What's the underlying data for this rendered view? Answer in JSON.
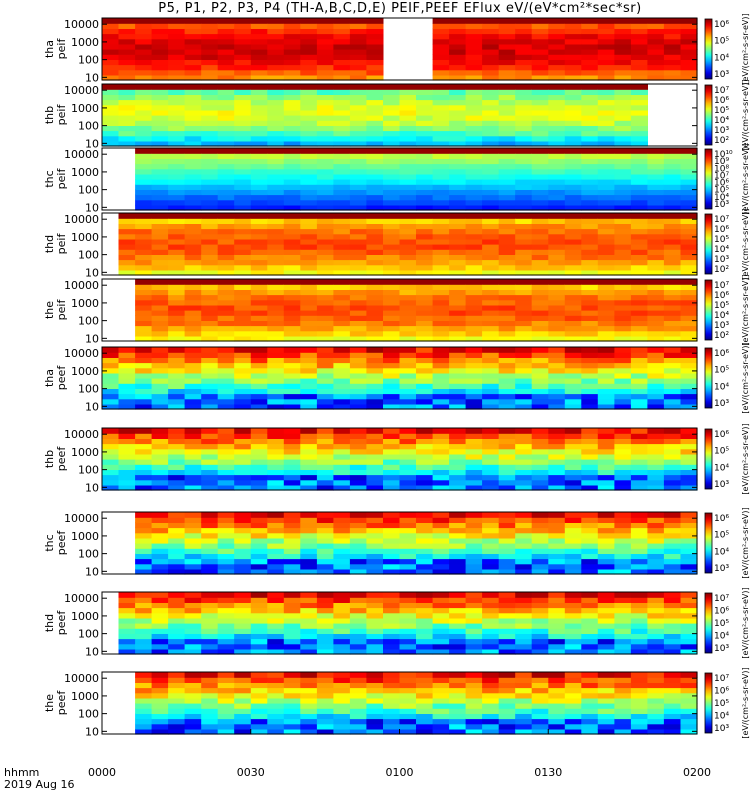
{
  "title": "P5, P1, P2, P3, P4 (TH-A,B,C,D,E) PEIF,PEEF EFlux eV/(eV*cm²*sec*sr)",
  "footer": {
    "label_format": "hhmm",
    "date": "2019 Aug 16"
  },
  "colorbar_label": "[eV/(cm²-s-sr-eV)]",
  "chart_data": {
    "type": "heatmap",
    "x": {
      "ticks": [
        "0000",
        "0030",
        "0100",
        "0130",
        "0200"
      ]
    },
    "y": {
      "scale": "log",
      "ticks": [
        "10",
        "100",
        "1000",
        "10000"
      ]
    },
    "panels": [
      {
        "probe": "tha",
        "label": "tha\npeif",
        "species": "ion",
        "gaps": [
          [
            0.485,
            0.56
          ]
        ],
        "start": 0.0,
        "end": 1.0,
        "colorbar_ticks": [
          "10³",
          "10⁴",
          "10⁵",
          "10⁶"
        ]
      },
      {
        "probe": "thb",
        "label": "thb\npeif",
        "species": "ion",
        "gaps": [
          [
            0.922,
            1.0
          ]
        ],
        "start": 0.0,
        "end": 0.922,
        "colorbar_ticks": [
          "10²",
          "10³",
          "10⁴",
          "10⁵",
          "10⁶",
          "10⁷"
        ]
      },
      {
        "probe": "thc",
        "label": "thc\npeif",
        "species": "ion",
        "gaps": [],
        "start": 0.045,
        "end": 1.0,
        "colorbar_ticks": [
          "10³",
          "10⁴",
          "10⁵",
          "10⁶",
          "10⁷",
          "10⁸",
          "10⁹",
          "10¹⁰"
        ]
      },
      {
        "probe": "thd",
        "label": "thd\npeif",
        "species": "ion",
        "gaps": [],
        "start": 0.03,
        "end": 1.0,
        "colorbar_ticks": [
          "10²",
          "10³",
          "10⁴",
          "10⁵",
          "10⁶",
          "10⁷"
        ]
      },
      {
        "probe": "the",
        "label": "the\npeif",
        "species": "ion",
        "gaps": [],
        "start": 0.045,
        "end": 1.0,
        "colorbar_ticks": [
          "10²",
          "10³",
          "10⁴",
          "10⁵",
          "10⁶",
          "10⁷"
        ]
      },
      {
        "probe": "tha",
        "label": "tha\npeef",
        "species": "electron",
        "gaps": [],
        "start": 0.0,
        "end": 1.0,
        "colorbar_ticks": [
          "10³",
          "10⁴",
          "10⁵",
          "10⁶"
        ]
      },
      {
        "probe": "thb",
        "label": "thb\npeef",
        "species": "electron",
        "gaps": [],
        "start": 0.0,
        "end": 1.0,
        "colorbar_ticks": [
          "10³",
          "10⁴",
          "10⁵",
          "10⁶"
        ]
      },
      {
        "probe": "thc",
        "label": "thc\npeef",
        "species": "electron",
        "gaps": [],
        "start": 0.045,
        "end": 1.0,
        "colorbar_ticks": [
          "10³",
          "10⁴",
          "10⁵",
          "10⁶"
        ]
      },
      {
        "probe": "thd",
        "label": "thd\npeef",
        "species": "electron",
        "gaps": [],
        "start": 0.03,
        "end": 1.0,
        "colorbar_ticks": [
          "10³",
          "10⁴",
          "10⁵",
          "10⁶",
          "10⁷"
        ]
      },
      {
        "probe": "the",
        "label": "the\npeef",
        "species": "electron",
        "gaps": [],
        "start": 0.045,
        "end": 1.0,
        "colorbar_ticks": [
          "10³",
          "10⁴",
          "10⁵",
          "10⁶",
          "10⁷"
        ]
      }
    ]
  }
}
